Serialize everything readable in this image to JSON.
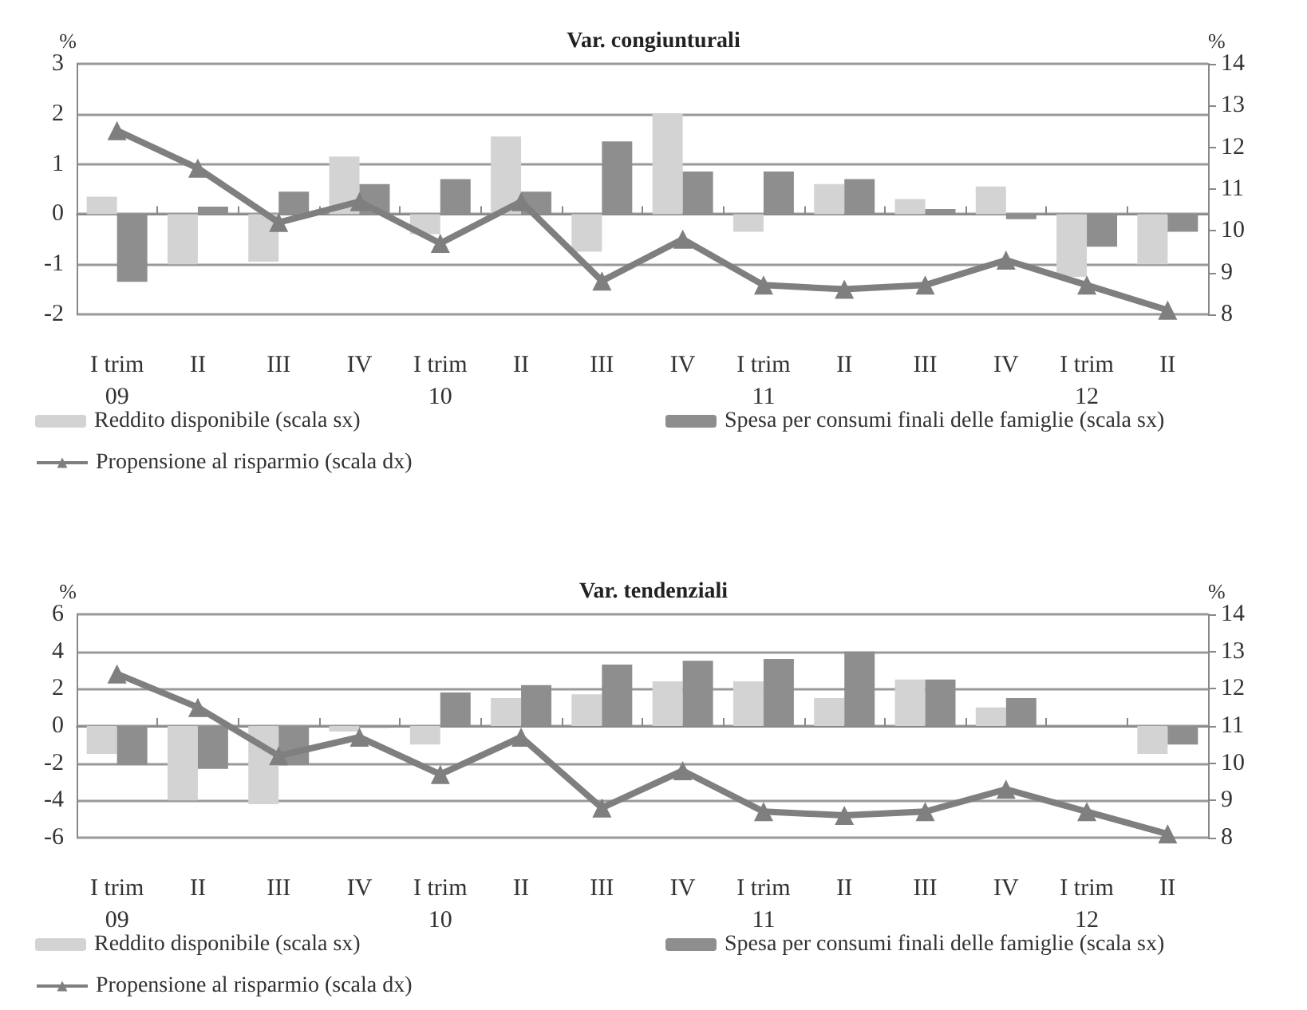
{
  "chart_data": [
    {
      "type": "bar",
      "title": "Var. congiunturali",
      "ylabel": "%",
      "y2label": "%",
      "categories": [
        "I trim\n09",
        "II",
        "III",
        "IV",
        "I trim\n10",
        "II",
        "III",
        "IV",
        "I trim\n11",
        "II",
        "III",
        "IV",
        "I trim\n12",
        "II"
      ],
      "series": [
        {
          "name": "Reddito disponibile (scala sx)",
          "color": "#d3d3d3",
          "values": [
            0.35,
            -1.0,
            -0.95,
            1.15,
            -0.4,
            1.55,
            -0.75,
            2.0,
            -0.35,
            0.6,
            0.3,
            0.55,
            -1.25,
            -1.0
          ]
        },
        {
          "name": "Spesa per consumi finali delle famiglie (scala sx)",
          "color": "#8e8e8e",
          "values": [
            -1.35,
            0.15,
            0.45,
            0.6,
            0.7,
            0.45,
            1.45,
            0.85,
            0.85,
            0.7,
            0.1,
            -0.1,
            -0.65,
            -0.35
          ]
        },
        {
          "name": "Propensione al risparmio (scala dx)",
          "type": "line",
          "axis": "y2",
          "marker": "triangle",
          "color": "#7f7f7f",
          "values": [
            12.4,
            11.5,
            10.2,
            10.7,
            9.7,
            10.7,
            8.8,
            9.8,
            8.7,
            8.6,
            8.7,
            9.3,
            8.7,
            8.1
          ]
        }
      ],
      "ylim": [
        -2,
        3
      ],
      "yticks": [
        -2,
        -1,
        0,
        1,
        2,
        3
      ],
      "y2lim": [
        8,
        14
      ],
      "y2ticks": [
        8,
        9,
        10,
        11,
        12,
        13,
        14
      ],
      "grid": "y",
      "legend": "bottom"
    },
    {
      "type": "bar",
      "title": "Var. tendenziali",
      "ylabel": "%",
      "y2label": "%",
      "categories": [
        "I trim\n09",
        "II",
        "III",
        "IV",
        "I trim\n10",
        "II",
        "III",
        "IV",
        "I trim\n11",
        "II",
        "III",
        "IV",
        "I trim\n12",
        "II"
      ],
      "series": [
        {
          "name": "Reddito disponibile (scala sx)",
          "color": "#d3d3d3",
          "values": [
            -1.5,
            -4.0,
            -4.2,
            -0.3,
            -1.0,
            1.5,
            1.7,
            2.4,
            2.4,
            1.5,
            2.5,
            1.0,
            null,
            -1.5
          ]
        },
        {
          "name": "Spesa per consumi finali delle famiglie (scala sx)",
          "color": "#8e8e8e",
          "values": [
            -2.1,
            -2.3,
            -2.1,
            -0.1,
            1.8,
            2.2,
            3.3,
            3.5,
            3.6,
            4.0,
            2.5,
            1.5,
            null,
            -1.0
          ]
        },
        {
          "name": "Propensione al risparmio (scala dx)",
          "type": "line",
          "axis": "y2",
          "marker": "triangle",
          "color": "#7f7f7f",
          "values": [
            12.4,
            11.5,
            10.2,
            10.7,
            9.7,
            10.7,
            8.8,
            9.8,
            8.7,
            8.6,
            8.7,
            9.3,
            8.7,
            8.1
          ]
        }
      ],
      "ylim": [
        -6,
        6
      ],
      "yticks": [
        -6,
        -4,
        -2,
        0,
        2,
        4,
        6
      ],
      "y2lim": [
        8,
        14
      ],
      "y2ticks": [
        8,
        9,
        10,
        11,
        12,
        13,
        14
      ],
      "grid": "y",
      "legend": "bottom"
    }
  ]
}
